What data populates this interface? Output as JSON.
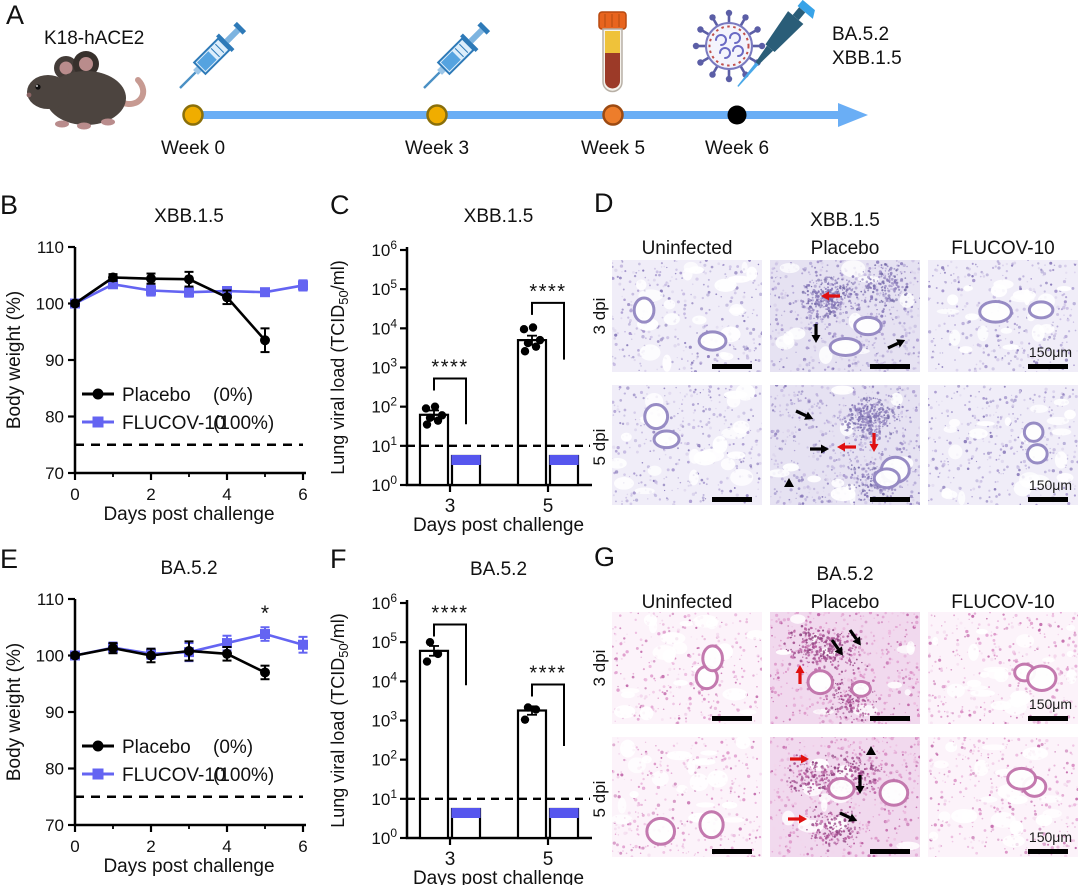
{
  "colors": {
    "placebo": "#000000",
    "flucov": "#6464f2",
    "flucov_bar_cap": "#5656ee",
    "timeline_blue": "#6aaef5",
    "week_dot_yellow": "#f0ad00",
    "week_dot_orange": "#ed7d2b",
    "week_dot_black": "#000000",
    "annotation_red": "#e01010"
  },
  "panel_a": {
    "label": "A",
    "mouse_model": "K18-hACE2",
    "mouse_icon": "mouse-icon",
    "challenge_strains": [
      "BA.5.2",
      "XBB.1.5"
    ],
    "timepoints": [
      {
        "label": "Week 0",
        "icon": "syringe-icon"
      },
      {
        "label": "Week 3",
        "icon": "syringe-icon"
      },
      {
        "label": "Week 5",
        "icon": "blood-tube-icon"
      },
      {
        "label": "Week 6",
        "icon": "virus-pipette-icon"
      }
    ]
  },
  "histology": {
    "panel_d": {
      "label": "D",
      "title": "XBB.1.5",
      "columns": [
        "Uninfected",
        "Placebo",
        "FLUCOV-10"
      ],
      "rows": [
        "3 dpi",
        "5 dpi"
      ],
      "scale_label": "150μm",
      "stain": "blue-purple",
      "placebo_annotations": [
        "red-arrow-icon",
        "black-arrow-icon",
        "black-arrowhead-icon"
      ]
    },
    "panel_g": {
      "label": "G",
      "title": "BA.5.2",
      "columns": [
        "Uninfected",
        "Placebo",
        "FLUCOV-10"
      ],
      "rows": [
        "3 dpi",
        "5 dpi"
      ],
      "scale_label": "150μm",
      "stain": "pink",
      "placebo_annotations": [
        "red-arrow-icon",
        "black-arrow-icon",
        "black-arrowhead-icon"
      ]
    }
  },
  "chart_data": [
    {
      "panel": "B",
      "label": "B",
      "type": "line",
      "title": "XBB.1.5",
      "xlabel": "Days post challenge",
      "ylabel": "Body weight (%)",
      "xlim": [
        0,
        6
      ],
      "xticks": [
        0,
        2,
        4,
        6
      ],
      "xminor": [
        1,
        3,
        5
      ],
      "ylim": [
        70,
        110
      ],
      "yticks": [
        70,
        80,
        90,
        100,
        110
      ],
      "dashed_threshold": 75,
      "x": [
        0,
        1,
        2,
        3,
        4,
        5,
        6
      ],
      "series": [
        {
          "name": "Placebo",
          "pct": "(0%)",
          "color": "#000000",
          "marker": "circle",
          "values": [
            100,
            104.6,
            104.4,
            104.3,
            101.1,
            93.5,
            null
          ],
          "errors": [
            0.4,
            0.6,
            0.9,
            1.3,
            1.2,
            2.1,
            null
          ]
        },
        {
          "name": "FLUCOV-10",
          "pct": "(100%)",
          "color": "#6464f2",
          "marker": "square",
          "values": [
            100,
            103.4,
            102.3,
            102.0,
            102.2,
            102.0,
            103.2
          ],
          "errors": [
            0.4,
            0.6,
            0.9,
            0.8,
            0.7,
            0.6,
            0.9
          ]
        }
      ]
    },
    {
      "panel": "C",
      "label": "C",
      "type": "bar-log",
      "title": "XBB.1.5",
      "xlabel": "Days post challenge",
      "ylabel_parts": {
        "pre": "Lung viral load (TCID",
        "sub": "50",
        "post": "/ml)"
      },
      "ylog_range": [
        0,
        6
      ],
      "lod": 10,
      "groups": [
        {
          "day": "3",
          "placebo": {
            "mean": 62,
            "err": [
              48,
              80
            ],
            "points": [
              35,
              44,
              52,
              60,
              90,
              100
            ]
          },
          "flucov": {
            "mean": 5.5,
            "below_lod": true
          },
          "sig": {
            "label": "****",
            "top_log": 2.72,
            "right_drop_log": 1.55
          }
        },
        {
          "day": "5",
          "placebo": {
            "mean": 5000,
            "err": [
              3800,
              6500
            ],
            "points": [
              2600,
              3400,
              4200,
              5000,
              9500,
              10500
            ]
          },
          "flucov": {
            "mean": 5.5,
            "below_lod": true
          },
          "sig": {
            "label": "****",
            "top_log": 4.65,
            "right_drop_log": 3.2
          }
        }
      ]
    },
    {
      "panel": "E",
      "label": "E",
      "type": "line",
      "title": "BA.5.2",
      "xlabel": "Days post challenge",
      "ylabel": "Body weight (%)",
      "xlim": [
        0,
        6
      ],
      "xticks": [
        0,
        2,
        4,
        6
      ],
      "xminor": [
        1,
        3,
        5
      ],
      "ylim": [
        70,
        110
      ],
      "yticks": [
        70,
        80,
        90,
        100,
        110
      ],
      "dashed_threshold": 75,
      "x": [
        0,
        1,
        2,
        3,
        4,
        5,
        6
      ],
      "series": [
        {
          "name": "Placebo",
          "pct": "(0%)",
          "color": "#000000",
          "marker": "circle",
          "values": [
            100,
            101.3,
            100.0,
            100.8,
            100.3,
            97.0,
            null
          ],
          "errors": [
            0.4,
            0.9,
            1.2,
            1.7,
            1.2,
            1.2,
            null
          ]
        },
        {
          "name": "FLUCOV-10",
          "pct": "(100%)",
          "color": "#6464f2",
          "marker": "square",
          "values": [
            100,
            101.4,
            100.3,
            100.6,
            102.2,
            103.8,
            101.9
          ],
          "errors": [
            0.4,
            0.9,
            0.9,
            1.6,
            1.3,
            1.2,
            1.4
          ]
        }
      ],
      "annotation": {
        "x": 5,
        "y": 106.3,
        "text": "*"
      }
    },
    {
      "panel": "F",
      "label": "F",
      "type": "bar-log",
      "title": "BA.5.2",
      "xlabel": "Days post challenge",
      "ylabel_parts": {
        "pre": "Lung viral load (TCID",
        "sub": "50",
        "post": "/ml)"
      },
      "ylog_range": [
        0,
        6
      ],
      "lod": 10,
      "groups": [
        {
          "day": "3",
          "placebo": {
            "mean": 60000,
            "err": [
              45000,
              80000
            ],
            "points": [
              32000,
              50000,
              100000
            ]
          },
          "flucov": {
            "mean": 5.5,
            "below_lod": true
          },
          "sig": {
            "label": "****",
            "top_log": 5.45,
            "right_drop_log": 3.9
          }
        },
        {
          "day": "5",
          "placebo": {
            "mean": 1800,
            "err": [
              1400,
              2300
            ],
            "points": [
              1050,
              1900,
              2150
            ]
          },
          "flucov": {
            "mean": 5.5,
            "below_lod": true
          },
          "sig": {
            "label": "****",
            "top_log": 3.92,
            "right_drop_log": 2.35
          }
        }
      ]
    }
  ]
}
